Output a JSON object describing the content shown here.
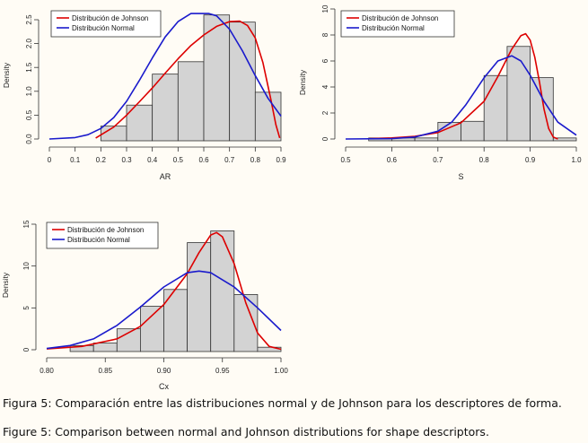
{
  "colors": {
    "johnson": "#dd0000",
    "normal": "#1a1acc",
    "bar_fill": "#d3d3d3",
    "bar_stroke": "#333333",
    "axis": "#333333",
    "background": "#fffcf5"
  },
  "caption": {
    "spanish": "Figura 5: Comparación entre las distribuciones normal y de Johnson para los descriptores de forma.",
    "english": "Figure 5: Comparison between normal and Johnson distributions for shape descriptors."
  },
  "chart_data": [
    {
      "type": "bar",
      "title": "",
      "xlabel": "AR",
      "ylabel": "Density",
      "xlim": [
        0,
        0.9
      ],
      "ylim": [
        0,
        2.5
      ],
      "xticks": [
        "0",
        "0.1",
        "0.2",
        "0.3",
        "0.4",
        "0.5",
        "0.6",
        "0.7",
        "0.8",
        "0.9"
      ],
      "yticks": [
        "0.0",
        "0.5",
        "1.0",
        "1.5",
        "2.0",
        "2.5"
      ],
      "grid": false,
      "legend_position": "top-left",
      "bins": [
        {
          "x0": 0.2,
          "x1": 0.3,
          "density": 0.27
        },
        {
          "x0": 0.3,
          "x1": 0.4,
          "density": 0.71
        },
        {
          "x0": 0.4,
          "x1": 0.5,
          "density": 1.36
        },
        {
          "x0": 0.5,
          "x1": 0.6,
          "density": 1.62
        },
        {
          "x0": 0.6,
          "x1": 0.7,
          "density": 2.6
        },
        {
          "x0": 0.7,
          "x1": 0.8,
          "density": 2.45
        },
        {
          "x0": 0.8,
          "x1": 0.9,
          "density": 0.98
        }
      ],
      "series": [
        {
          "name": "Distribución de Johnson",
          "color": "#dd0000",
          "x": [
            0.18,
            0.25,
            0.3,
            0.35,
            0.4,
            0.45,
            0.5,
            0.55,
            0.6,
            0.65,
            0.7,
            0.74,
            0.77,
            0.8,
            0.83,
            0.86,
            0.88,
            0.895
          ],
          "y": [
            0.02,
            0.25,
            0.5,
            0.78,
            1.07,
            1.38,
            1.68,
            1.96,
            2.18,
            2.36,
            2.46,
            2.47,
            2.38,
            2.12,
            1.6,
            0.85,
            0.3,
            0.02
          ]
        },
        {
          "name": "Distribución Normal",
          "color": "#1a1acc",
          "x": [
            0,
            0.1,
            0.15,
            0.2,
            0.25,
            0.3,
            0.35,
            0.4,
            0.45,
            0.5,
            0.55,
            0.6,
            0.62,
            0.65,
            0.7,
            0.75,
            0.8,
            0.85,
            0.9
          ],
          "y": [
            0.0,
            0.03,
            0.09,
            0.22,
            0.45,
            0.79,
            1.23,
            1.7,
            2.14,
            2.46,
            2.63,
            2.63,
            2.63,
            2.58,
            2.3,
            1.85,
            1.33,
            0.85,
            0.48
          ]
        }
      ]
    },
    {
      "type": "bar",
      "title": "",
      "xlabel": "S",
      "ylabel": "Density",
      "xlim": [
        0.5,
        1.0
      ],
      "ylim": [
        0,
        10
      ],
      "xticks": [
        "0.5",
        "0.6",
        "0.7",
        "0.8",
        "0.9",
        "1.0"
      ],
      "yticks": [
        "0",
        "2",
        "4",
        "6",
        "8",
        "10"
      ],
      "grid": false,
      "legend_position": "top-left",
      "bins": [
        {
          "x0": 0.55,
          "x1": 0.6,
          "density": 0.08
        },
        {
          "x0": 0.6,
          "x1": 0.65,
          "density": 0.08
        },
        {
          "x0": 0.65,
          "x1": 0.7,
          "density": 0.08
        },
        {
          "x0": 0.7,
          "x1": 0.75,
          "density": 1.28
        },
        {
          "x0": 0.75,
          "x1": 0.8,
          "density": 1.36
        },
        {
          "x0": 0.8,
          "x1": 0.85,
          "density": 4.88
        },
        {
          "x0": 0.85,
          "x1": 0.9,
          "density": 7.12
        },
        {
          "x0": 0.9,
          "x1": 0.95,
          "density": 4.72
        },
        {
          "x0": 0.95,
          "x1": 1.0,
          "density": 0.08
        }
      ],
      "series": [
        {
          "name": "Distribución de Johnson",
          "color": "#dd0000",
          "x": [
            0.55,
            0.6,
            0.65,
            0.7,
            0.75,
            0.8,
            0.83,
            0.86,
            0.88,
            0.89,
            0.9,
            0.91,
            0.92,
            0.93,
            0.94,
            0.95,
            0.96
          ],
          "y": [
            0.02,
            0.08,
            0.2,
            0.5,
            1.25,
            2.9,
            4.8,
            6.9,
            7.95,
            8.1,
            7.6,
            6.3,
            4.4,
            2.3,
            0.8,
            0.15,
            0.0
          ]
        },
        {
          "name": "Distribución Normal",
          "color": "#1a1acc",
          "x": [
            0.5,
            0.6,
            0.65,
            0.7,
            0.73,
            0.76,
            0.8,
            0.83,
            0.86,
            0.88,
            0.9,
            0.93,
            0.96,
            1.0
          ],
          "y": [
            0.0,
            0.03,
            0.15,
            0.6,
            1.3,
            2.6,
            4.7,
            6.0,
            6.4,
            6.0,
            4.9,
            2.9,
            1.3,
            0.3
          ]
        }
      ]
    },
    {
      "type": "bar",
      "title": "",
      "xlabel": "Cx",
      "ylabel": "Density",
      "xlim": [
        0.8,
        1.0
      ],
      "ylim": [
        0,
        15
      ],
      "xticks": [
        "0.80",
        "0.85",
        "0.90",
        "0.95",
        "1.00"
      ],
      "yticks": [
        "0",
        "5",
        "10",
        "15"
      ],
      "grid": false,
      "legend_position": "top-left",
      "bins": [
        {
          "x0": 0.82,
          "x1": 0.84,
          "density": 0.5
        },
        {
          "x0": 0.84,
          "x1": 0.86,
          "density": 0.8
        },
        {
          "x0": 0.86,
          "x1": 0.88,
          "density": 2.5
        },
        {
          "x0": 0.88,
          "x1": 0.9,
          "density": 5.2
        },
        {
          "x0": 0.9,
          "x1": 0.92,
          "density": 7.2
        },
        {
          "x0": 0.92,
          "x1": 0.94,
          "density": 12.8
        },
        {
          "x0": 0.94,
          "x1": 0.96,
          "density": 14.2
        },
        {
          "x0": 0.96,
          "x1": 0.98,
          "density": 6.6
        },
        {
          "x0": 0.98,
          "x1": 1.0,
          "density": 0.3
        }
      ],
      "series": [
        {
          "name": "Distribución de Johnson",
          "color": "#dd0000",
          "x": [
            0.8,
            0.83,
            0.86,
            0.88,
            0.9,
            0.92,
            0.93,
            0.94,
            0.945,
            0.95,
            0.96,
            0.97,
            0.98,
            0.99,
            1.0
          ],
          "y": [
            0.1,
            0.4,
            1.3,
            2.8,
            5.4,
            9.1,
            11.6,
            13.7,
            14.0,
            13.5,
            10.3,
            5.6,
            2.0,
            0.4,
            0.05
          ]
        },
        {
          "name": "Distribución Normal",
          "color": "#1a1acc",
          "x": [
            0.8,
            0.82,
            0.84,
            0.86,
            0.88,
            0.9,
            0.92,
            0.93,
            0.94,
            0.96,
            0.98,
            1.0
          ],
          "y": [
            0.15,
            0.5,
            1.3,
            2.9,
            5.1,
            7.5,
            9.2,
            9.4,
            9.2,
            7.5,
            5.0,
            2.3
          ]
        }
      ]
    }
  ]
}
